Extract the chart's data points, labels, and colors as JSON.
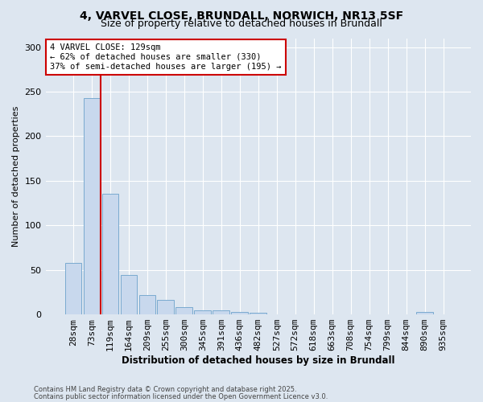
{
  "title_line1": "4, VARVEL CLOSE, BRUNDALL, NORWICH, NR13 5SF",
  "title_line2": "Size of property relative to detached houses in Brundall",
  "xlabel": "Distribution of detached houses by size in Brundall",
  "ylabel": "Number of detached properties",
  "footnote1": "Contains HM Land Registry data © Crown copyright and database right 2025.",
  "footnote2": "Contains public sector information licensed under the Open Government Licence v3.0.",
  "annotation_line1": "4 VARVEL CLOSE: 129sqm",
  "annotation_line2": "← 62% of detached houses are smaller (330)",
  "annotation_line3": "37% of semi-detached houses are larger (195) →",
  "bar_color": "#c8d8ed",
  "bar_edge_color": "#7aaad0",
  "red_line_color": "#cc0000",
  "background_color": "#dde6f0",
  "categories": [
    "28sqm",
    "73sqm",
    "119sqm",
    "164sqm",
    "209sqm",
    "255sqm",
    "300sqm",
    "345sqm",
    "391sqm",
    "436sqm",
    "482sqm",
    "527sqm",
    "572sqm",
    "618sqm",
    "663sqm",
    "708sqm",
    "754sqm",
    "799sqm",
    "844sqm",
    "890sqm",
    "935sqm"
  ],
  "values": [
    58,
    243,
    135,
    44,
    22,
    16,
    8,
    5,
    5,
    3,
    2,
    0,
    0,
    0,
    0,
    0,
    0,
    0,
    0,
    3,
    0
  ],
  "red_line_index": 2,
  "ylim": [
    0,
    310
  ],
  "yticks": [
    0,
    50,
    100,
    150,
    200,
    250,
    300
  ]
}
